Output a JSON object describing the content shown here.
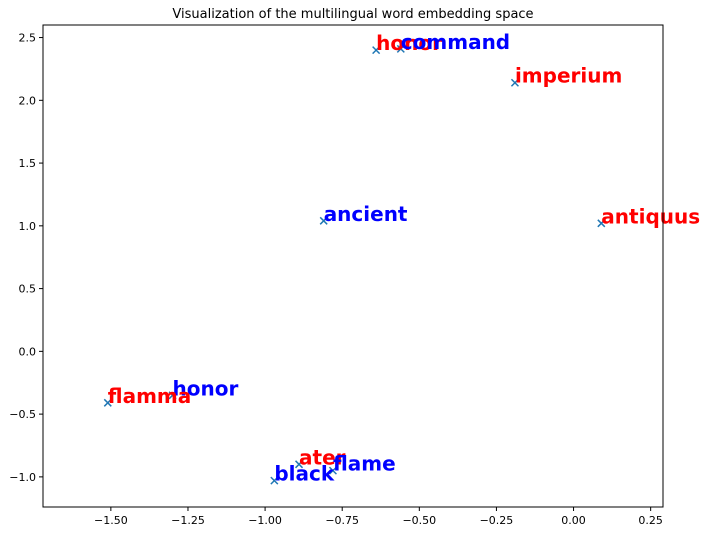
{
  "chart_data": {
    "type": "scatter",
    "title": "Visualization of the multilingual word embedding space",
    "xlabel": "",
    "ylabel": "",
    "xlim": [
      -1.72,
      0.29
    ],
    "ylim": [
      -1.24,
      2.6
    ],
    "grid": false,
    "marker": "x",
    "marker_color": "#1f77b4",
    "x_ticks": [
      -1.5,
      -1.25,
      -1.0,
      -0.75,
      -0.5,
      -0.25,
      0.0,
      0.25
    ],
    "x_tick_labels": [
      "−1.50",
      "−1.25",
      "−1.00",
      "−0.75",
      "−0.50",
      "−0.25",
      "0.00",
      "0.25"
    ],
    "y_ticks": [
      -1.0,
      -0.5,
      0.0,
      0.5,
      1.0,
      1.5,
      2.0,
      2.5
    ],
    "y_tick_labels": [
      "−1.0",
      "−0.5",
      "0.0",
      "0.5",
      "1.0",
      "1.5",
      "2.0",
      "2.5"
    ],
    "points": [
      {
        "label": "honor",
        "x": -0.64,
        "y": 2.4,
        "color": "#ff0000"
      },
      {
        "label": "command",
        "x": -0.56,
        "y": 2.41,
        "color": "#0000ff"
      },
      {
        "label": "imperium",
        "x": -0.19,
        "y": 2.14,
        "color": "#ff0000"
      },
      {
        "label": "ancient",
        "x": -0.81,
        "y": 1.04,
        "color": "#0000ff"
      },
      {
        "label": "antiquus",
        "x": 0.09,
        "y": 1.02,
        "color": "#ff0000"
      },
      {
        "label": "honor",
        "x": -1.3,
        "y": -0.35,
        "color": "#0000ff"
      },
      {
        "label": "flamma",
        "x": -1.51,
        "y": -0.41,
        "color": "#ff0000"
      },
      {
        "label": "ater",
        "x": -0.89,
        "y": -0.9,
        "color": "#ff0000"
      },
      {
        "label": "flame",
        "x": -0.78,
        "y": -0.95,
        "color": "#0000ff"
      },
      {
        "label": "black",
        "x": -0.97,
        "y": -1.03,
        "color": "#0000ff"
      }
    ]
  }
}
